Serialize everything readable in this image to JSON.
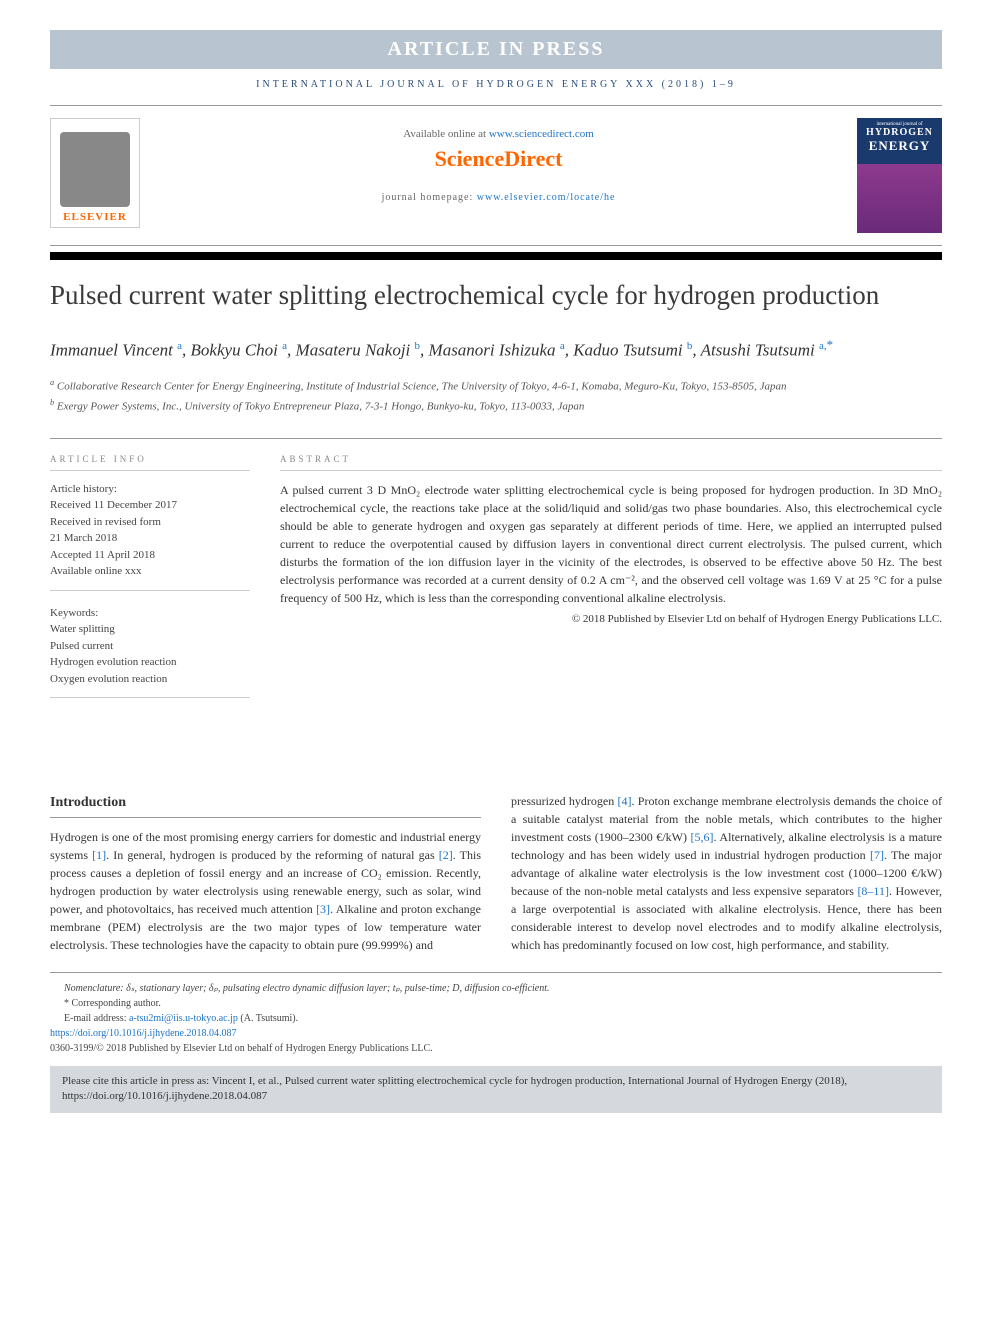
{
  "banner": "ARTICLE IN PRESS",
  "journal_ref": "INTERNATIONAL JOURNAL OF HYDROGEN ENERGY XXX (2018) 1–9",
  "header": {
    "available_text": "Available online at ",
    "available_url": "www.sciencedirect.com",
    "sciencedirect": "ScienceDirect",
    "homepage_label": "journal homepage: ",
    "homepage_url": "www.elsevier.com/locate/he",
    "elsevier": "ELSEVIER",
    "cover_top": "international journal of",
    "cover_h": "HYDROGEN",
    "cover_e": "ENERGY"
  },
  "title": "Pulsed current water splitting electrochemical cycle for hydrogen production",
  "authors_html": "Immanuel Vincent <sup class='affil-sup'>a</sup>, Bokkyu Choi <sup class='affil-sup'>a</sup>, Masateru Nakoji <sup class='affil-sup'>b</sup>, Masanori Ishizuka <sup class='affil-sup'>a</sup>, Kaduo Tsutsumi <sup class='affil-sup'>b</sup>, Atsushi Tsutsumi <sup class='affil-sup'>a,</sup><sup class='corr-sup'>*</sup>",
  "affiliations": {
    "a": "Collaborative Research Center for Energy Engineering, Institute of Industrial Science, The University of Tokyo, 4-6-1, Komaba, Meguro-Ku, Tokyo, 153-8505, Japan",
    "b": "Exergy Power Systems, Inc., University of Tokyo Entrepreneur Plaza, 7-3-1 Hongo, Bunkyo-ku, Tokyo, 113-0033, Japan"
  },
  "article_info": {
    "heading": "ARTICLE INFO",
    "history_label": "Article history:",
    "received": "Received 11 December 2017",
    "revised1": "Received in revised form",
    "revised2": "21 March 2018",
    "accepted": "Accepted 11 April 2018",
    "online": "Available online xxx",
    "keywords_label": "Keywords:",
    "keywords": [
      "Water splitting",
      "Pulsed current",
      "Hydrogen evolution reaction",
      "Oxygen evolution reaction"
    ]
  },
  "abstract": {
    "heading": "ABSTRACT",
    "text": "A pulsed current 3 D MnO₂ electrode water splitting electrochemical cycle is being proposed for hydrogen production. In 3D MnO₂ electrochemical cycle, the reactions take place at the solid/liquid and solid/gas two phase boundaries. Also, this electrochemical cycle should be able to generate hydrogen and oxygen gas separately at different periods of time. Here, we applied an interrupted pulsed current to reduce the overpotential caused by diffusion layers in conventional direct current electrolysis. The pulsed current, which disturbs the formation of the ion diffusion layer in the vicinity of the electrodes, is observed to be effective above 50 Hz. The best electrolysis performance was recorded at a current density of 0.2 A cm⁻², and the observed cell voltage was 1.69 V at 25 °C for a pulse frequency of 500 Hz, which is less than the corresponding conventional alkaline electrolysis.",
    "copyright": "© 2018 Published by Elsevier Ltd on behalf of Hydrogen Energy Publications LLC."
  },
  "intro": {
    "heading": "Introduction",
    "col1": "Hydrogen is one of the most promising energy carriers for domestic and industrial energy systems <span class='ref-link'>[1]</span>. In general, hydrogen is produced by the reforming of natural gas <span class='ref-link'>[2]</span>. This process causes a depletion of fossil energy and an increase of CO₂ emission. Recently, hydrogen production by water electrolysis using renewable energy, such as solar, wind power, and photovoltaics, has received much attention <span class='ref-link'>[3]</span>. Alkaline and proton exchange membrane (PEM) electrolysis are the two major types of low temperature water electrolysis. These technologies have the capacity to obtain pure (99.999%) and",
    "col2": "pressurized hydrogen <span class='ref-link'>[4]</span>. Proton exchange membrane electrolysis demands the choice of a suitable catalyst material from the noble metals, which contributes to the higher investment costs (1900–2300 €/kW) <span class='ref-link'>[5,6]</span>. Alternatively, alkaline electrolysis is a mature technology and has been widely used in industrial hydrogen production <span class='ref-link'>[7]</span>. The major advantage of alkaline water electrolysis is the low investment cost (1000–1200 €/kW) because of the non-noble metal catalysts and less expensive separators <span class='ref-link'>[8–11]</span>. However, a large overpotential is associated with alkaline electrolysis. Hence, there has been considerable interest to develop novel electrodes and to modify alkaline electrolysis, which has predominantly focused on low cost, high performance, and stability."
  },
  "footnotes": {
    "nomenclature": "Nomenclature: δₛ, stationary layer; δₚ, pulsating electro dynamic diffusion layer; tₚ, pulse-time; D, diffusion co-efficient.",
    "corr": "* Corresponding author.",
    "email_label": "E-mail address: ",
    "email": "a-tsu2mi@iis.u-tokyo.ac.jp",
    "email_name": " (A. Tsutsumi).",
    "doi": "https://doi.org/10.1016/j.ijhydene.2018.04.087",
    "issn": "0360-3199/© 2018 Published by Elsevier Ltd on behalf of Hydrogen Energy Publications LLC."
  },
  "cite_box": "Please cite this article in press as: Vincent I, et al., Pulsed current water splitting electrochemical cycle for hydrogen production, International Journal of Hydrogen Energy (2018), https://doi.org/10.1016/j.ijhydene.2018.04.087",
  "colors": {
    "banner_bg": "#b8c5d0",
    "link": "#2075c7",
    "orange": "#ff6600",
    "cite_bg": "#d5d9dd"
  }
}
